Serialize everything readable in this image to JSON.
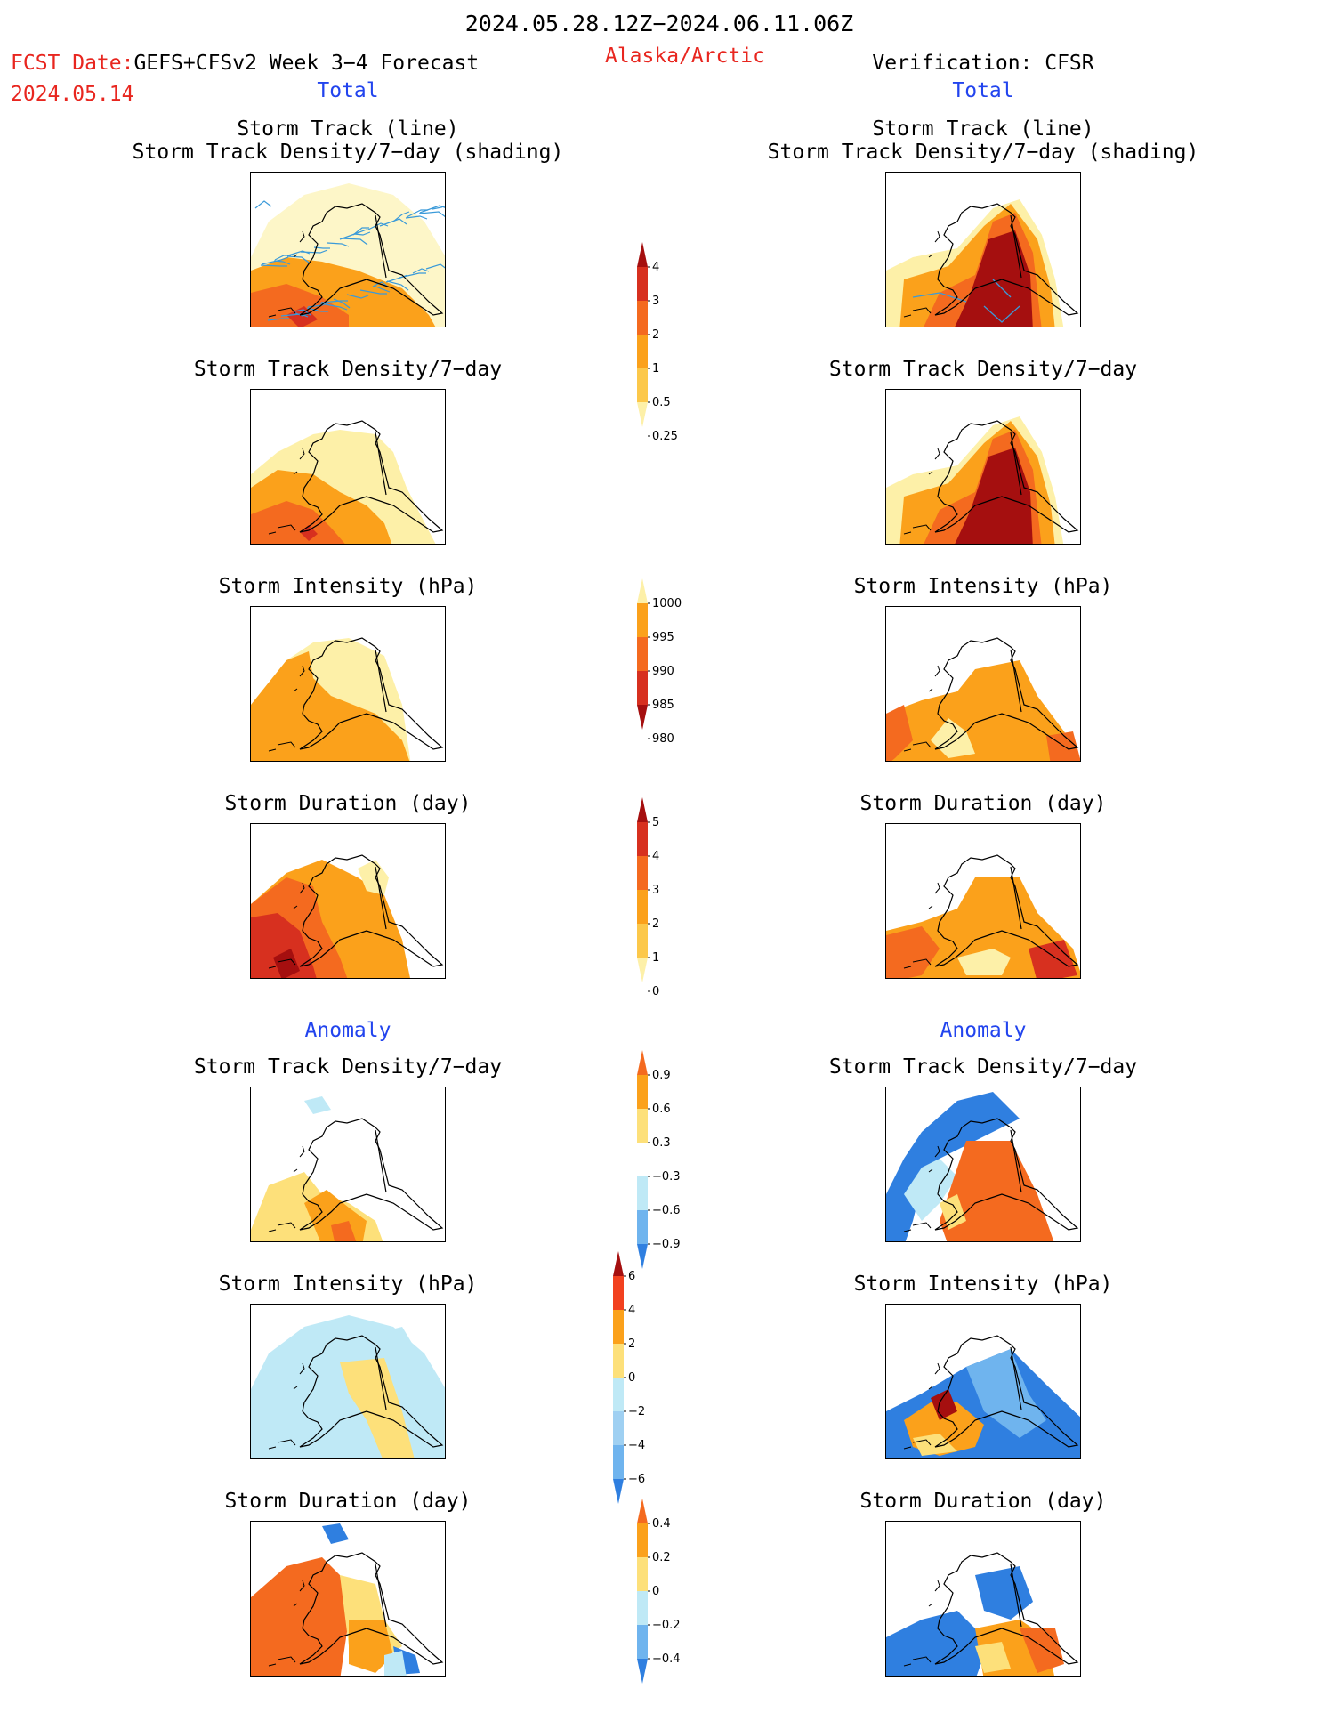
{
  "header": {
    "period": "2024.05.28.12Z−2024.06.11.06Z",
    "fcst_prefix": "FCST Date:",
    "fcst_model": "GEFS+CFSv2 Week 3−4 Forecast",
    "fcst_date": "2024.05.14",
    "region": "Alaska/Arctic",
    "verification": "Verification: CFSR",
    "total_left": "Total",
    "total_right": "Total",
    "anomaly_left": "Anomaly",
    "anomaly_right": "Anomaly"
  },
  "panel_titles": {
    "track_line": "Storm Track (line)",
    "track_shading": "Storm Track Density/7−day (shading)",
    "density": "Storm Track Density/7−day",
    "intensity": "Storm Intensity (hPa)",
    "duration": "Storm Duration (day)"
  },
  "colorbars": {
    "density": {
      "labels": [
        "4",
        "3",
        "2",
        "1",
        "0.5",
        "0.25"
      ],
      "colors": [
        "#a50f0f",
        "#d7301f",
        "#f46a1f",
        "#fba11b",
        "#fcc84a",
        "#fdf0a8"
      ]
    },
    "intensity": {
      "labels": [
        "1000",
        "995",
        "990",
        "985",
        "980"
      ],
      "colors": [
        "#fdf0a8",
        "#fba11b",
        "#f46a1f",
        "#d7301f",
        "#a50f0f"
      ]
    },
    "duration": {
      "labels": [
        "5",
        "4",
        "3",
        "2",
        "1",
        "0"
      ],
      "colors": [
        "#a50f0f",
        "#d7301f",
        "#f46a1f",
        "#fba11b",
        "#fcc84a",
        "#fdf0a8"
      ]
    },
    "density_anom": {
      "labels": [
        "0.9",
        "0.6",
        "0.3",
        "−0.3",
        "−0.6",
        "−0.9"
      ],
      "colors": [
        "#f46a1f",
        "#fba11b",
        "#fde07a",
        "#ffffff",
        "#bfe9f6",
        "#6fb4ee",
        "#2f7fe0"
      ]
    },
    "intensity_anom": {
      "labels": [
        "6",
        "4",
        "2",
        "0",
        "−2",
        "−4",
        "−6"
      ],
      "colors": [
        "#a50f0f",
        "#f2411f",
        "#fba11b",
        "#fde07a",
        "#bfe9f6",
        "#9fd0f2",
        "#6fb4ee",
        "#2f7fe0"
      ]
    },
    "duration_anom": {
      "labels": [
        "0.4",
        "0.2",
        "0",
        "−0.2",
        "−0.4"
      ],
      "colors": [
        "#f46a1f",
        "#fba11b",
        "#fde07a",
        "#bfe9f6",
        "#6fb4ee",
        "#2f7fe0"
      ]
    }
  },
  "palette": {
    "light_yellow": "#fdf0a8",
    "orange": "#fba11b",
    "dark_orange": "#f46a1f",
    "red": "#d7301f",
    "dark_red": "#a50f0f",
    "light_blue": "#bfe9f6",
    "blue": "#2f7fe0",
    "track_line": "#3a9ad9"
  }
}
